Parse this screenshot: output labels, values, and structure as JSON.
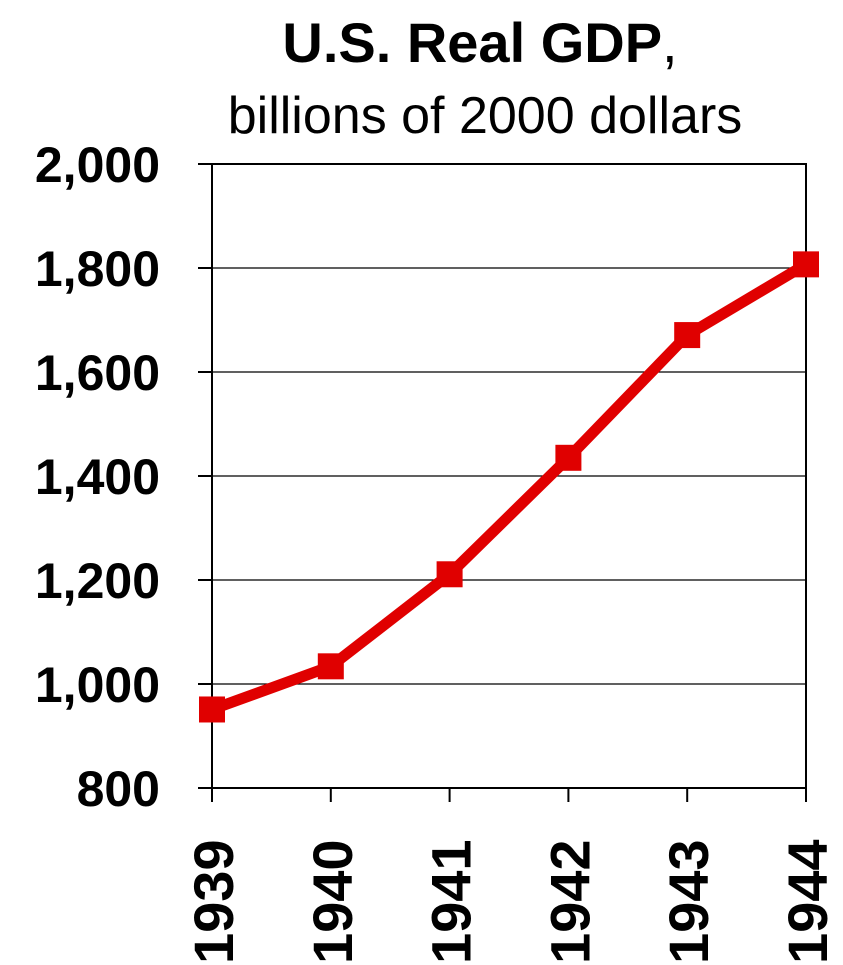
{
  "chart_data": {
    "type": "line",
    "title": "U.S. Real GDP",
    "title_suffix": ",",
    "subtitle": "billions of 2000 dollars",
    "xlabel": "",
    "ylabel": "",
    "categories": [
      "1939",
      "1940",
      "1941",
      "1942",
      "1943",
      "1944"
    ],
    "series": [
      {
        "values": [
          951,
          1034,
          1211,
          1435,
          1671,
          1807
        ]
      }
    ],
    "ylim": [
      800,
      2000
    ],
    "yticks": [
      800,
      1000,
      1200,
      1400,
      1600,
      1800,
      2000
    ],
    "ytick_labels": [
      "800",
      "1,000",
      "1,200",
      "1,400",
      "1,600",
      "1,800",
      "2,000"
    ],
    "grid": true,
    "legend": "none",
    "colors": {
      "line": "#e00000",
      "axis": "#000000",
      "grid": "#000000"
    }
  }
}
